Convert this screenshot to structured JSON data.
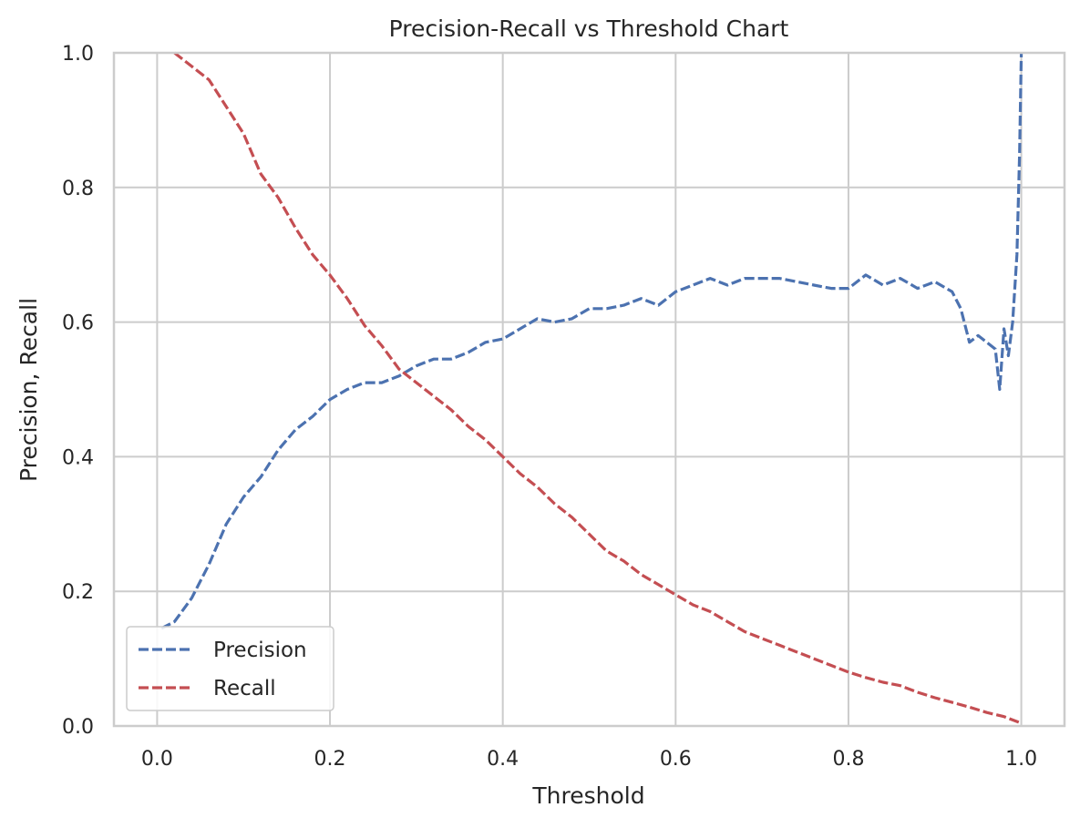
{
  "chart_data": {
    "type": "line",
    "title": "Precision-Recall vs Threshold Chart",
    "xlabel": "Threshold",
    "ylabel": "Precision, Recall",
    "xlim": [
      -0.05,
      1.05
    ],
    "ylim": [
      0.0,
      1.0
    ],
    "xticks": [
      0.0,
      0.2,
      0.4,
      0.6,
      0.8,
      1.0
    ],
    "xtick_labels": [
      "0.0",
      "0.2",
      "0.4",
      "0.6",
      "0.8",
      "1.0"
    ],
    "yticks": [
      0.0,
      0.2,
      0.4,
      0.6,
      0.8,
      1.0
    ],
    "ytick_labels": [
      "0.0",
      "0.2",
      "0.4",
      "0.6",
      "0.8",
      "1.0"
    ],
    "grid": true,
    "legend_position": "lower-left",
    "series": [
      {
        "name": "Precision",
        "color": "#4c72b0",
        "style": "dashed",
        "x": [
          0.005,
          0.02,
          0.04,
          0.06,
          0.08,
          0.1,
          0.12,
          0.14,
          0.16,
          0.18,
          0.2,
          0.22,
          0.24,
          0.26,
          0.28,
          0.3,
          0.32,
          0.34,
          0.36,
          0.38,
          0.4,
          0.42,
          0.44,
          0.46,
          0.48,
          0.5,
          0.52,
          0.54,
          0.56,
          0.58,
          0.6,
          0.62,
          0.64,
          0.66,
          0.68,
          0.7,
          0.72,
          0.74,
          0.76,
          0.78,
          0.8,
          0.82,
          0.84,
          0.86,
          0.88,
          0.9,
          0.92,
          0.93,
          0.94,
          0.95,
          0.96,
          0.97,
          0.975,
          0.98,
          0.985,
          0.99,
          0.995,
          0.998,
          1.0
        ],
        "values": [
          0.145,
          0.155,
          0.19,
          0.24,
          0.3,
          0.34,
          0.37,
          0.41,
          0.44,
          0.46,
          0.485,
          0.5,
          0.51,
          0.51,
          0.52,
          0.535,
          0.545,
          0.545,
          0.555,
          0.57,
          0.575,
          0.59,
          0.605,
          0.6,
          0.605,
          0.62,
          0.62,
          0.625,
          0.635,
          0.625,
          0.645,
          0.655,
          0.665,
          0.655,
          0.665,
          0.665,
          0.665,
          0.66,
          0.655,
          0.65,
          0.65,
          0.67,
          0.655,
          0.665,
          0.65,
          0.66,
          0.645,
          0.62,
          0.57,
          0.58,
          0.57,
          0.56,
          0.5,
          0.59,
          0.55,
          0.6,
          0.7,
          0.85,
          1.0
        ]
      },
      {
        "name": "Recall",
        "color": "#c44e52",
        "style": "dashed",
        "x": [
          0.02,
          0.04,
          0.06,
          0.08,
          0.1,
          0.12,
          0.14,
          0.16,
          0.18,
          0.2,
          0.22,
          0.24,
          0.26,
          0.28,
          0.3,
          0.32,
          0.34,
          0.36,
          0.38,
          0.4,
          0.42,
          0.44,
          0.46,
          0.48,
          0.5,
          0.52,
          0.54,
          0.56,
          0.58,
          0.6,
          0.62,
          0.64,
          0.66,
          0.68,
          0.7,
          0.72,
          0.74,
          0.76,
          0.78,
          0.8,
          0.82,
          0.84,
          0.86,
          0.88,
          0.9,
          0.92,
          0.94,
          0.96,
          0.98,
          1.0
        ],
        "values": [
          1.0,
          0.98,
          0.96,
          0.92,
          0.88,
          0.82,
          0.785,
          0.74,
          0.7,
          0.67,
          0.635,
          0.595,
          0.565,
          0.53,
          0.51,
          0.49,
          0.47,
          0.445,
          0.425,
          0.4,
          0.375,
          0.355,
          0.33,
          0.31,
          0.285,
          0.26,
          0.245,
          0.225,
          0.21,
          0.195,
          0.18,
          0.17,
          0.155,
          0.14,
          0.13,
          0.12,
          0.11,
          0.1,
          0.09,
          0.08,
          0.072,
          0.065,
          0.06,
          0.05,
          0.042,
          0.035,
          0.028,
          0.02,
          0.014,
          0.004
        ]
      }
    ]
  }
}
